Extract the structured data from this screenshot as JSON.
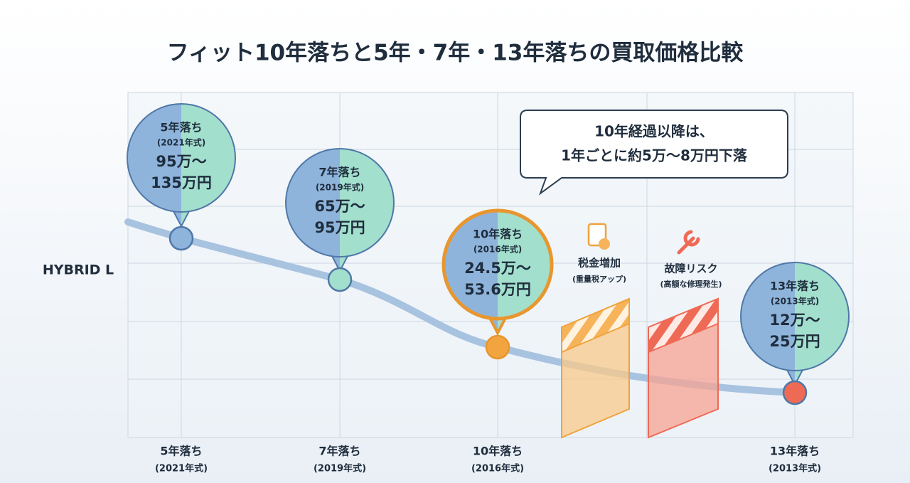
{
  "title": "フィット10年落ちと5年・7年・13年落ちの買取価格比較",
  "row_label": "HYBRID L",
  "points": [
    {
      "label": "5年落ち",
      "model_year": "(2021年式)",
      "price_low": "95万〜",
      "price_high": "135万円",
      "axis_label": "5年落ち",
      "axis_year": "(2021年式)"
    },
    {
      "label": "7年落ち",
      "model_year": "(2019年式)",
      "price_low": "65万〜",
      "price_high": "95万円",
      "axis_label": "7年落ち",
      "axis_year": "(2019年式)"
    },
    {
      "label": "10年落ち",
      "model_year": "(2016年式)",
      "price_low": "24.5万〜",
      "price_high": "53.6万円",
      "axis_label": "10年落ち",
      "axis_year": "(2016年式)"
    },
    {
      "label": "13年落ち",
      "model_year": "(2013年式)",
      "price_low": "12万〜",
      "price_high": "25万円",
      "axis_label": "13年落ち",
      "axis_year": "(2013年式)"
    }
  ],
  "callout": {
    "line1": "10年経過以降は、",
    "line2": "1年ごとに約5万〜8万円下落"
  },
  "factors": [
    {
      "title": "税金増加",
      "note": "(重量税アップ)"
    },
    {
      "title": "故障リスク",
      "note": "(高額な修理発生)"
    }
  ]
}
